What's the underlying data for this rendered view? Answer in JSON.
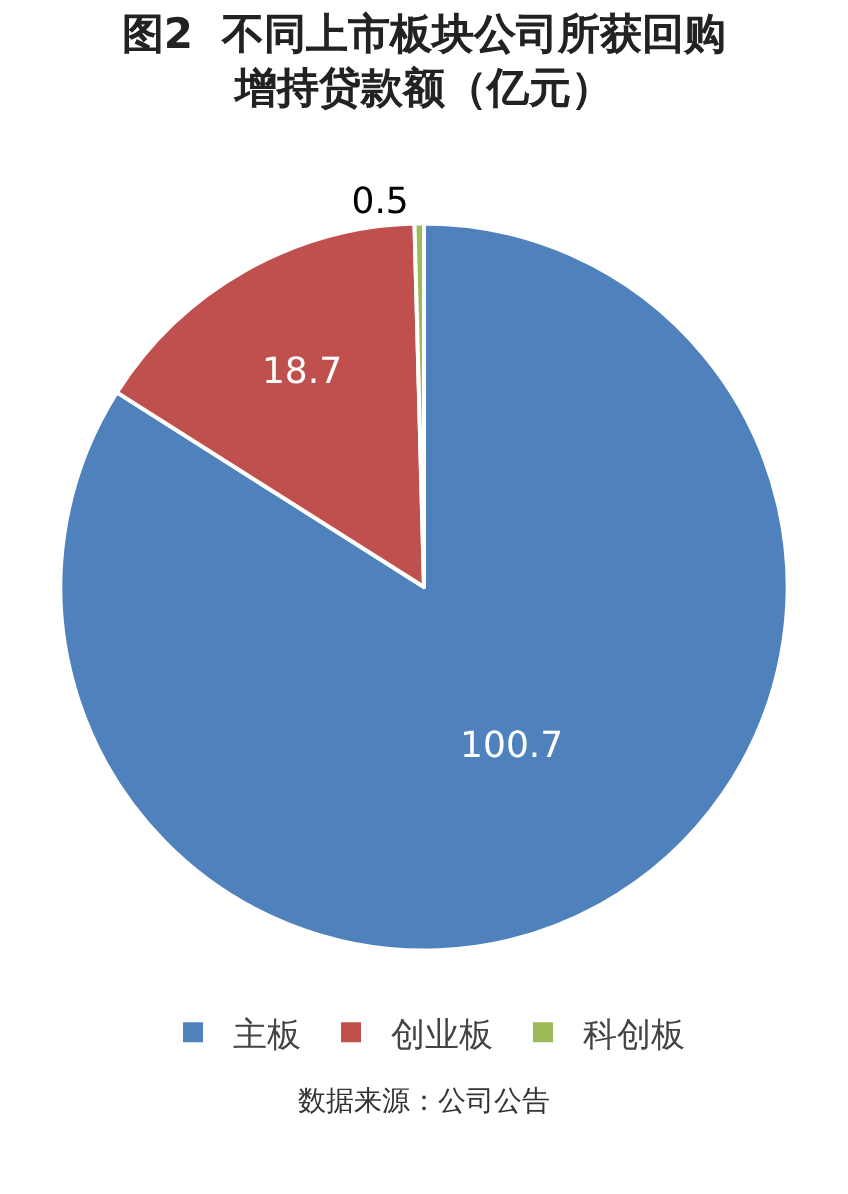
{
  "chart_data": {
    "type": "pie",
    "title": "图2  不同上市板块公司所获回购增持贷款额（亿元）",
    "categories": [
      "主板",
      "创业板",
      "科创板"
    ],
    "values": [
      100.7,
      18.7,
      0.5
    ],
    "colors": [
      "#4f81bd",
      "#c0504d",
      "#9bbb59"
    ],
    "data_labels": true,
    "legend": "bottom",
    "annotations": [
      "数据来源：公司公告"
    ]
  }
}
